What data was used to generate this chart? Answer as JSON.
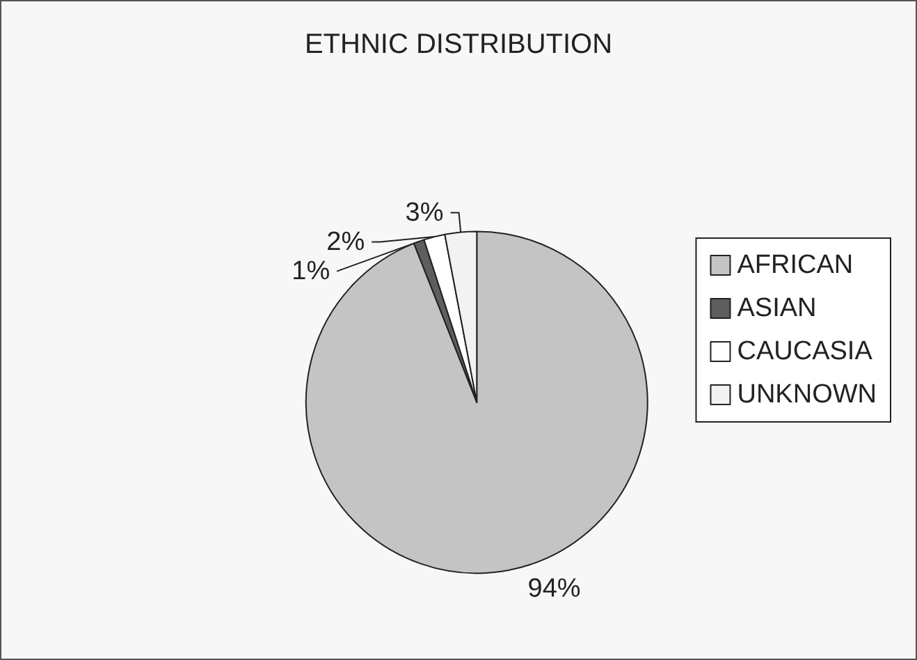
{
  "chart_data": {
    "type": "pie",
    "title": "ETHNIC DISTRIBUTION",
    "categories": [
      "AFRICAN",
      "ASIAN",
      "CAUCASIA",
      "UNKNOWN"
    ],
    "values": [
      94,
      1,
      2,
      3
    ],
    "value_labels": [
      "94%",
      "1%",
      "2%",
      "3%"
    ],
    "colors": [
      "#c4c4c4",
      "#5e5e5e",
      "#ffffff",
      "#f2f2f2"
    ],
    "legend": "right"
  }
}
